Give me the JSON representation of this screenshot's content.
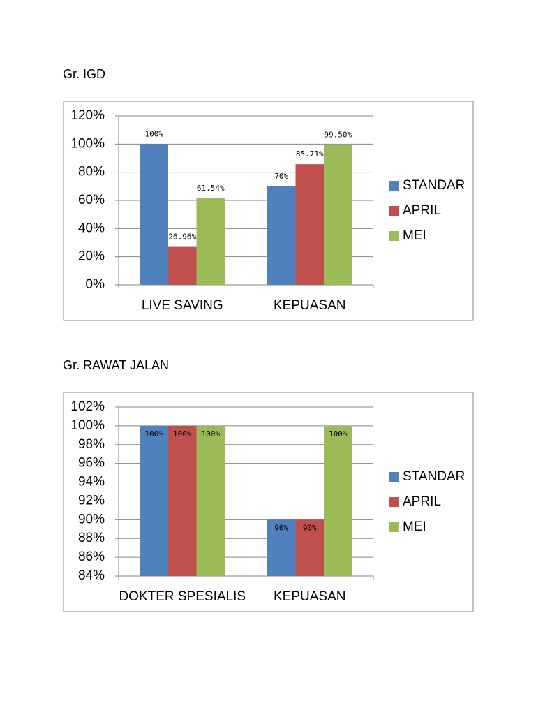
{
  "chart_data": [
    {
      "type": "bar",
      "title": "Gr. IGD",
      "categories": [
        "LIVE SAVING",
        "KEPUASAN"
      ],
      "series": [
        {
          "name": "STANDAR",
          "color": "#4f81bd",
          "values": [
            100,
            70
          ],
          "value_labels": [
            "100%",
            "70%"
          ]
        },
        {
          "name": "APRIL",
          "color": "#c0504d",
          "values": [
            26.96,
            85.71
          ],
          "value_labels": [
            "26.96%",
            "85.71%"
          ]
        },
        {
          "name": "MEI",
          "color": "#9bbb59",
          "values": [
            61.54,
            99.5
          ],
          "value_labels": [
            "61.54%",
            "99.50%"
          ]
        }
      ],
      "ylim": [
        0,
        120
      ],
      "yticks": [
        {
          "value": 0,
          "label": "0%"
        },
        {
          "value": 20,
          "label": "20%"
        },
        {
          "value": 40,
          "label": "40%"
        },
        {
          "value": 60,
          "label": "60%"
        },
        {
          "value": 80,
          "label": "80%"
        },
        {
          "value": 100,
          "label": "100%"
        },
        {
          "value": 120,
          "label": "120%"
        }
      ],
      "grid": true,
      "legend": "right"
    },
    {
      "type": "bar",
      "title": "Gr. RAWAT JALAN",
      "categories": [
        "DOKTER SPESIALIS",
        "KEPUASAN"
      ],
      "series": [
        {
          "name": "STANDAR",
          "color": "#4f81bd",
          "values": [
            100,
            90
          ],
          "value_labels": [
            "100%",
            "90%"
          ]
        },
        {
          "name": "APRIL",
          "color": "#c0504d",
          "values": [
            100,
            90
          ],
          "value_labels": [
            "100%",
            "90%"
          ]
        },
        {
          "name": "MEI",
          "color": "#9bbb59",
          "values": [
            100,
            100
          ],
          "value_labels": [
            "100%",
            "100%"
          ]
        }
      ],
      "ylim": [
        84,
        102
      ],
      "yticks": [
        {
          "value": 84,
          "label": "84%"
        },
        {
          "value": 86,
          "label": "86%"
        },
        {
          "value": 88,
          "label": "88%"
        },
        {
          "value": 90,
          "label": "90%"
        },
        {
          "value": 92,
          "label": "92%"
        },
        {
          "value": 94,
          "label": "94%"
        },
        {
          "value": 96,
          "label": "96%"
        },
        {
          "value": 98,
          "label": "98%"
        },
        {
          "value": 100,
          "label": "100%"
        },
        {
          "value": 102,
          "label": "102%"
        }
      ],
      "grid": true,
      "legend": "right"
    }
  ]
}
